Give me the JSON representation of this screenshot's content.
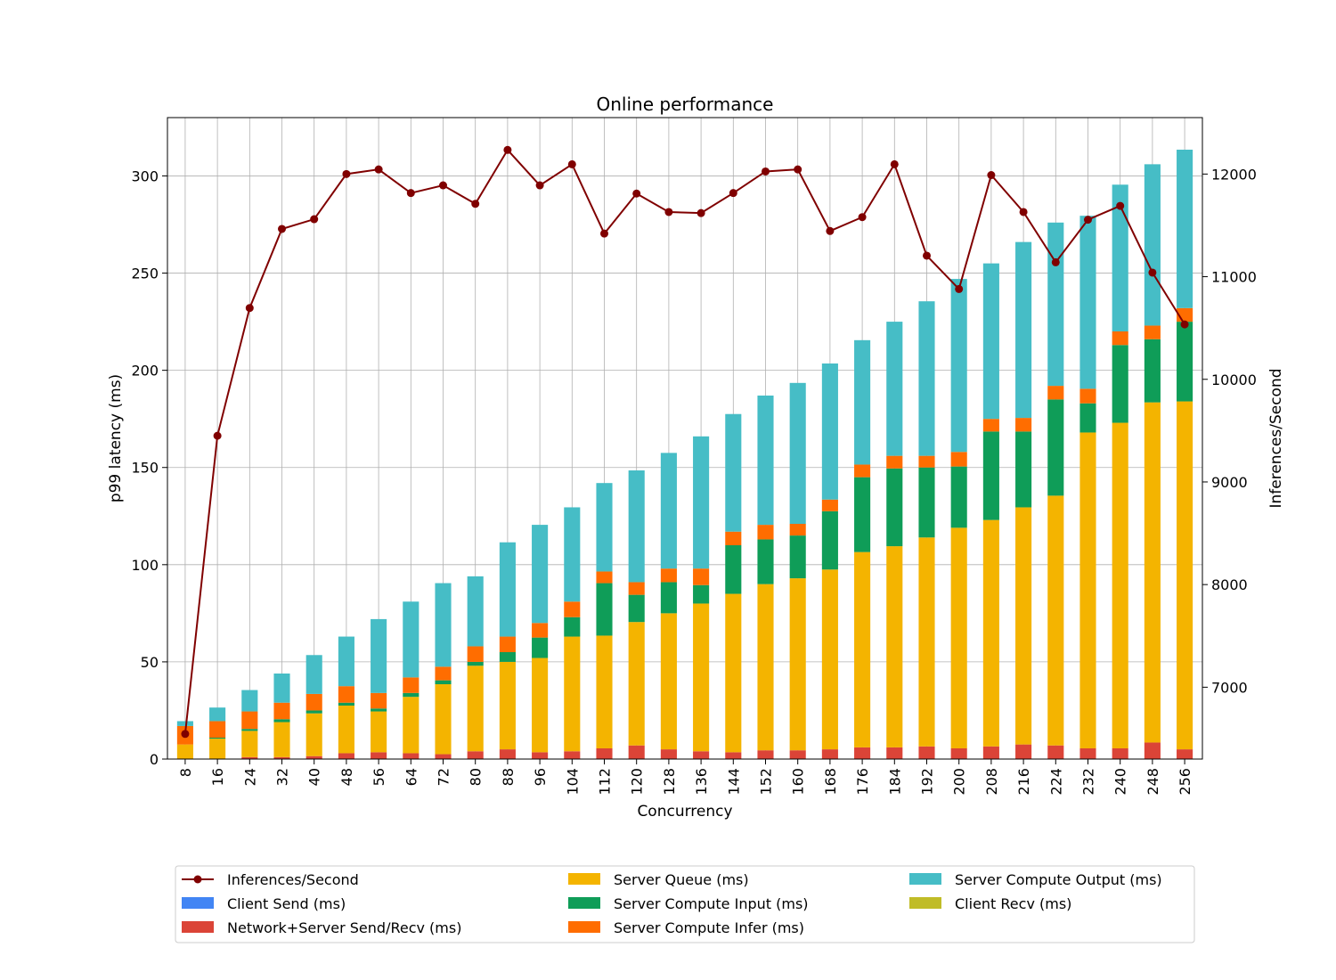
{
  "chart_data": {
    "type": "bar",
    "title": "Online performance",
    "xlabel": "Concurrency",
    "ylabel": "p99 latency (ms)",
    "y2label": "Inferences/Second",
    "ylim": [
      0,
      330
    ],
    "y2lim": [
      6300,
      12550
    ],
    "yticks": [
      0,
      50,
      100,
      150,
      200,
      250,
      300
    ],
    "y2ticks": [
      7000,
      8000,
      9000,
      10000,
      11000,
      12000
    ],
    "grid": true,
    "legend_position": "bottom",
    "categories": [
      "8",
      "16",
      "24",
      "32",
      "40",
      "48",
      "56",
      "64",
      "72",
      "80",
      "88",
      "96",
      "104",
      "112",
      "120",
      "128",
      "136",
      "144",
      "152",
      "160",
      "168",
      "176",
      "184",
      "192",
      "200",
      "208",
      "216",
      "224",
      "232",
      "240",
      "248",
      "256"
    ],
    "series": [
      {
        "name": "Client Send (ms)",
        "color": "#4285f4",
        "values": [
          0,
          0,
          0,
          0,
          0,
          0,
          0,
          0,
          0,
          0,
          0,
          0,
          0,
          0,
          0,
          0,
          0,
          0,
          0,
          0,
          0,
          0,
          0,
          0,
          0,
          0,
          0,
          0,
          0,
          0,
          0,
          0
        ]
      },
      {
        "name": "Network+Server Send/Recv (ms)",
        "color": "#db4437",
        "values": [
          0,
          0,
          1,
          1,
          1.5,
          3,
          3.5,
          3,
          2.5,
          4,
          5,
          3.5,
          4,
          5.5,
          7,
          5,
          4,
          3.5,
          4.5,
          4.5,
          5,
          6,
          6,
          6.5,
          5.5,
          6.5,
          7.5,
          7,
          5.5,
          5.5,
          8.5,
          5
        ]
      },
      {
        "name": "Server Queue (ms)",
        "color": "#f4b400",
        "values": [
          7.5,
          10.5,
          13.5,
          18,
          22,
          24.5,
          21,
          29,
          36,
          44,
          45,
          48.5,
          59,
          58,
          63.5,
          70,
          76,
          81.5,
          85.5,
          88.5,
          92.5,
          100.5,
          103.5,
          107.5,
          113.5,
          116.5,
          122,
          128.5,
          162.5,
          167.5,
          175,
          179
        ]
      },
      {
        "name": "Server Compute Input (ms)",
        "color": "#0f9d58",
        "values": [
          0,
          0.5,
          1,
          1.5,
          1.5,
          1.5,
          1.5,
          2,
          2,
          2,
          5,
          10.5,
          10,
          27,
          14,
          16,
          9.5,
          25,
          23,
          22,
          30,
          38.5,
          40,
          36,
          31.5,
          45.5,
          39,
          49.5,
          15,
          40,
          32.5,
          41
        ]
      },
      {
        "name": "Server Compute Infer (ms)",
        "color": "#ff6d00",
        "values": [
          9.5,
          8.5,
          9,
          8.5,
          8.5,
          8.5,
          8,
          8,
          7,
          8,
          8,
          7.5,
          8,
          6,
          6.5,
          7,
          8.5,
          7,
          7.5,
          6,
          6,
          6.5,
          6.5,
          6,
          7.5,
          6.5,
          7,
          7,
          7.5,
          7,
          7,
          7
        ]
      },
      {
        "name": "Server Compute Output (ms)",
        "color": "#46bdc6",
        "values": [
          2.5,
          7,
          11,
          15,
          20,
          25.5,
          38,
          39,
          43,
          36,
          48.5,
          50.5,
          48.5,
          45.5,
          57.5,
          59.5,
          68,
          60.5,
          66.5,
          72.5,
          70,
          64,
          69,
          79.5,
          89,
          80,
          90.5,
          84,
          89,
          75.5,
          83,
          81.5
        ]
      },
      {
        "name": "Client Recv (ms)",
        "color": "#c0bc27",
        "values": [
          0,
          0,
          0,
          0,
          0,
          0,
          0,
          0,
          0,
          0,
          0,
          0,
          0,
          0,
          0,
          0,
          0,
          0,
          0,
          0,
          0,
          0,
          0,
          0,
          0,
          0,
          0,
          0,
          0,
          0,
          0,
          0
        ]
      }
    ],
    "line": {
      "name": "Inferences/Second",
      "color": "#800000",
      "axis": "right",
      "values": [
        6545,
        9450,
        10695,
        11465,
        11560,
        12000,
        12045,
        11815,
        11890,
        11710,
        12235,
        11890,
        12095,
        11420,
        11810,
        11630,
        11620,
        11815,
        12025,
        12045,
        11445,
        11580,
        12095,
        11205,
        10880,
        11990,
        11630,
        11140,
        11555,
        11690,
        11040,
        10535
      ]
    }
  }
}
